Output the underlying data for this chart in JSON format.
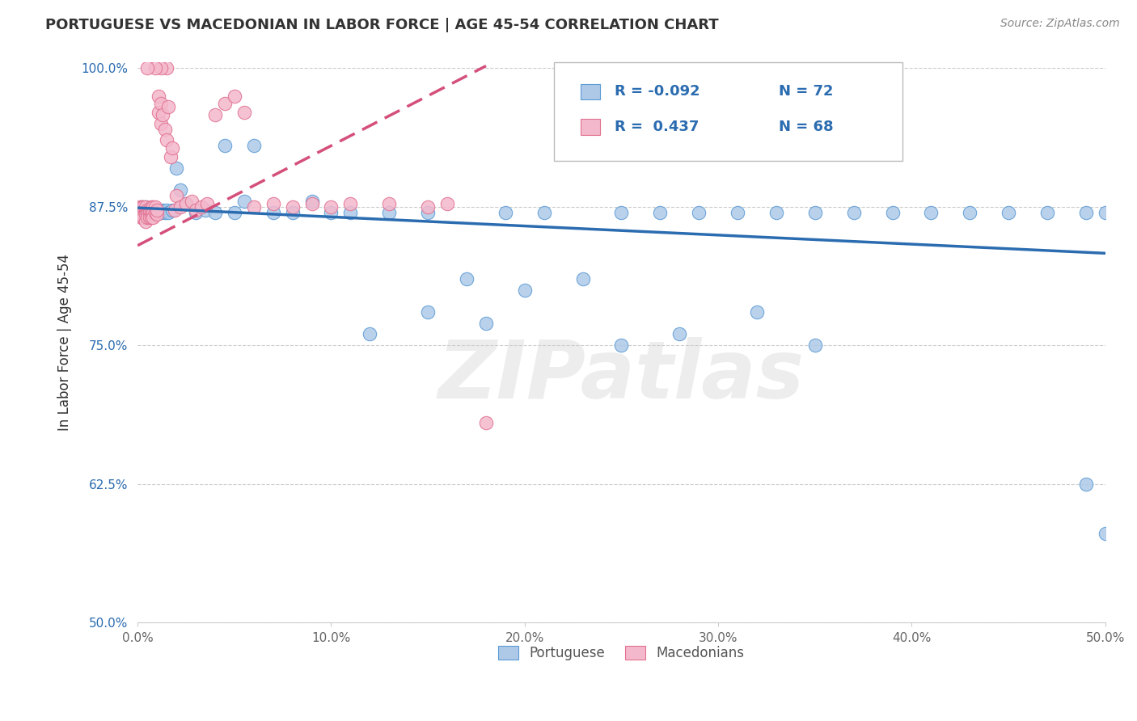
{
  "title": "PORTUGUESE VS MACEDONIAN IN LABOR FORCE | AGE 45-54 CORRELATION CHART",
  "source": "Source: ZipAtlas.com",
  "ylabel": "In Labor Force | Age 45-54",
  "xmin": 0.0,
  "xmax": 0.5,
  "ymin": 0.5,
  "ymax": 1.005,
  "xticks": [
    0.0,
    0.1,
    0.2,
    0.3,
    0.4,
    0.5
  ],
  "xtick_labels": [
    "0.0%",
    "10.0%",
    "20.0%",
    "30.0%",
    "40.0%",
    "50.0%"
  ],
  "yticks": [
    0.5,
    0.625,
    0.75,
    0.875,
    1.0
  ],
  "ytick_labels": [
    "50.0%",
    "62.5%",
    "75.0%",
    "87.5%",
    "100.0%"
  ],
  "blue_R": "-0.092",
  "blue_N": "72",
  "pink_R": "0.437",
  "pink_N": "68",
  "blue_color": "#aec9e8",
  "pink_color": "#f4b8cc",
  "blue_edge_color": "#5b9bd5",
  "pink_edge_color": "#e07090",
  "blue_line_color": "#2b6cb0",
  "pink_line_color": "#d44f7a",
  "legend_label_blue": "Portuguese",
  "legend_label_pink": "Macedonians",
  "watermark": "ZIPatlas",
  "blue_scatter_x": [
    0.001,
    0.002,
    0.002,
    0.003,
    0.003,
    0.004,
    0.004,
    0.005,
    0.005,
    0.005,
    0.006,
    0.006,
    0.007,
    0.007,
    0.008,
    0.008,
    0.009,
    0.009,
    0.01,
    0.01,
    0.011,
    0.012,
    0.013,
    0.014,
    0.015,
    0.016,
    0.018,
    0.02,
    0.022,
    0.025,
    0.03,
    0.035,
    0.04,
    0.045,
    0.05,
    0.055,
    0.06,
    0.07,
    0.08,
    0.09,
    0.1,
    0.11,
    0.13,
    0.15,
    0.17,
    0.19,
    0.21,
    0.23,
    0.25,
    0.27,
    0.29,
    0.31,
    0.33,
    0.35,
    0.37,
    0.39,
    0.41,
    0.43,
    0.45,
    0.47,
    0.49,
    0.5,
    0.28,
    0.32,
    0.25,
    0.2,
    0.35,
    0.15,
    0.18,
    0.12,
    0.49,
    0.5
  ],
  "blue_scatter_y": [
    0.872,
    0.875,
    0.868,
    0.87,
    0.872,
    0.868,
    0.875,
    0.87,
    0.865,
    0.872,
    0.87,
    0.868,
    0.872,
    0.87,
    0.868,
    0.872,
    0.87,
    0.868,
    0.872,
    0.87,
    0.872,
    0.87,
    0.872,
    0.87,
    0.872,
    0.87,
    0.872,
    0.91,
    0.89,
    0.878,
    0.87,
    0.872,
    0.87,
    0.93,
    0.87,
    0.88,
    0.93,
    0.87,
    0.87,
    0.88,
    0.87,
    0.87,
    0.87,
    0.87,
    0.81,
    0.87,
    0.87,
    0.81,
    0.87,
    0.87,
    0.87,
    0.87,
    0.87,
    0.87,
    0.87,
    0.87,
    0.87,
    0.87,
    0.87,
    0.87,
    0.87,
    0.87,
    0.76,
    0.78,
    0.75,
    0.8,
    0.75,
    0.78,
    0.77,
    0.76,
    0.625,
    0.58
  ],
  "pink_scatter_x": [
    0.001,
    0.001,
    0.001,
    0.002,
    0.002,
    0.002,
    0.002,
    0.003,
    0.003,
    0.003,
    0.003,
    0.004,
    0.004,
    0.004,
    0.004,
    0.005,
    0.005,
    0.005,
    0.005,
    0.006,
    0.006,
    0.006,
    0.007,
    0.007,
    0.007,
    0.008,
    0.008,
    0.008,
    0.009,
    0.009,
    0.01,
    0.01,
    0.011,
    0.011,
    0.012,
    0.012,
    0.013,
    0.014,
    0.015,
    0.016,
    0.017,
    0.018,
    0.019,
    0.02,
    0.022,
    0.025,
    0.028,
    0.03,
    0.033,
    0.036,
    0.04,
    0.045,
    0.05,
    0.055,
    0.06,
    0.07,
    0.08,
    0.09,
    0.1,
    0.11,
    0.13,
    0.15,
    0.16,
    0.18,
    0.015,
    0.012,
    0.009,
    0.005
  ],
  "pink_scatter_y": [
    0.868,
    0.872,
    0.875,
    0.87,
    0.868,
    0.875,
    0.865,
    0.872,
    0.868,
    0.875,
    0.865,
    0.872,
    0.868,
    0.875,
    0.862,
    0.872,
    0.87,
    0.868,
    0.865,
    0.872,
    0.87,
    0.865,
    0.875,
    0.87,
    0.865,
    0.875,
    0.87,
    0.865,
    0.875,
    0.87,
    0.868,
    0.872,
    0.96,
    0.975,
    0.95,
    0.968,
    0.958,
    0.945,
    0.935,
    0.965,
    0.92,
    0.928,
    0.872,
    0.885,
    0.875,
    0.878,
    0.88,
    0.872,
    0.875,
    0.878,
    0.958,
    0.968,
    0.975,
    0.96,
    0.875,
    0.878,
    0.875,
    0.878,
    0.875,
    0.878,
    0.878,
    0.875,
    0.878,
    0.68,
    1.0,
    1.0,
    1.0,
    1.0
  ]
}
